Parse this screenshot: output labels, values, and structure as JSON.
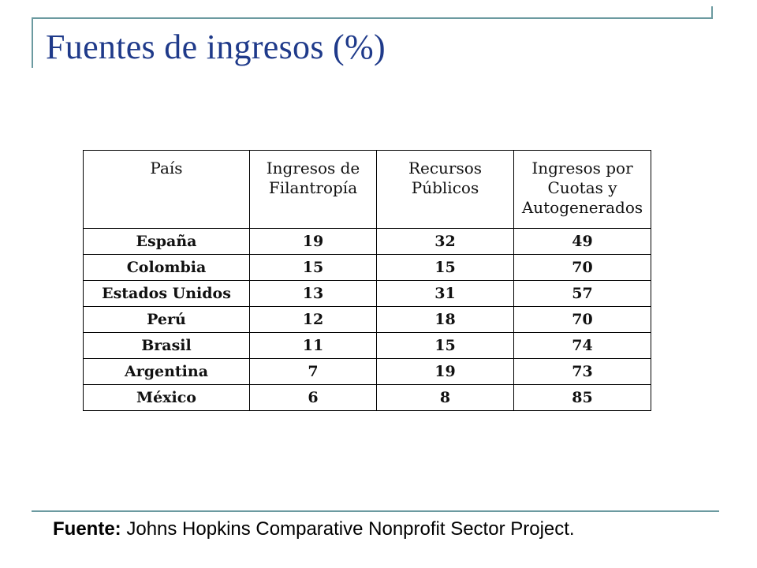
{
  "slide": {
    "title": "Fuentes de ingresos (%)"
  },
  "table": {
    "headers": [
      "País",
      "Ingresos de\nFilantropía",
      "Recursos\nPúblicos",
      "Ingresos por\nCuotas y\nAutogenerados"
    ],
    "rows": [
      [
        "España",
        "19",
        "32",
        "49"
      ],
      [
        "Colombia",
        "15",
        "15",
        "70"
      ],
      [
        "Estados Unidos",
        "13",
        "31",
        "57"
      ],
      [
        "Perú",
        "12",
        "18",
        "70"
      ],
      [
        "Brasil",
        "11",
        "15",
        "74"
      ],
      [
        "Argentina",
        "7",
        "19",
        "73"
      ],
      [
        "México",
        "6",
        "8",
        "85"
      ]
    ]
  },
  "source": {
    "label": "Fuente:",
    "text": " Johns Hopkins Comparative Nonprofit Sector Project."
  },
  "colors": {
    "title": "#1f3a8a",
    "frame": "#6b9aa0"
  }
}
